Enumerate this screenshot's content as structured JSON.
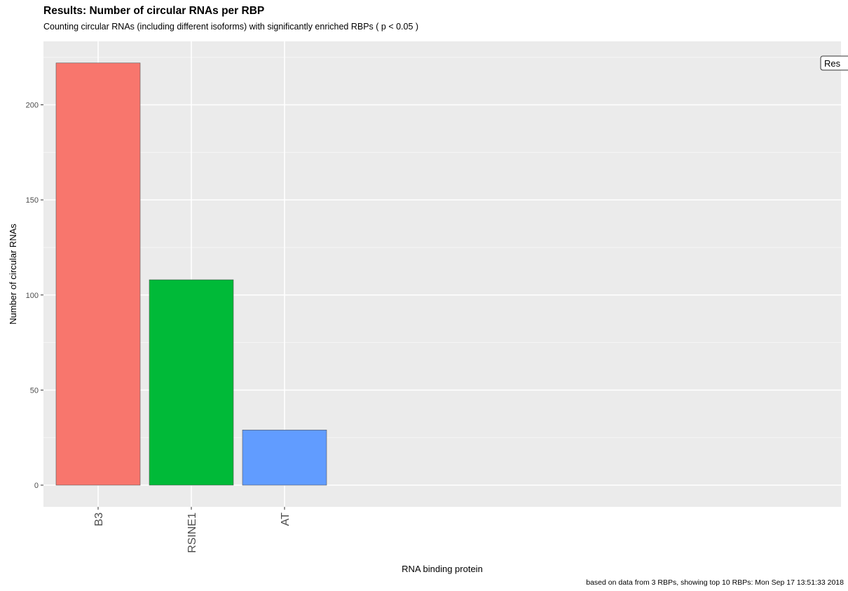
{
  "chart_data": {
    "type": "bar",
    "title": "Results: Number of circular RNAs per RBP",
    "subtitle": "Counting circular RNAs (including different isoforms) with significantly enriched RBPs ( p < 0.05 )",
    "xlabel": "RNA binding protein",
    "ylabel": "Number of circular RNAs",
    "caption": "based on data from 3 RBPs, showing top 10 RBPs: Mon Sep 17 13:51:33 2018",
    "categories": [
      "B3",
      "RSINE1",
      "AT"
    ],
    "values": [
      222,
      108,
      29
    ],
    "bar_colors": [
      "#F8766D",
      "#00BA38",
      "#619CFF"
    ],
    "ylim": [
      0,
      230
    ],
    "yticks": [
      0,
      50,
      100,
      150,
      200
    ],
    "grid": true,
    "legend": {
      "label": "Res",
      "placement": "top-right"
    }
  }
}
